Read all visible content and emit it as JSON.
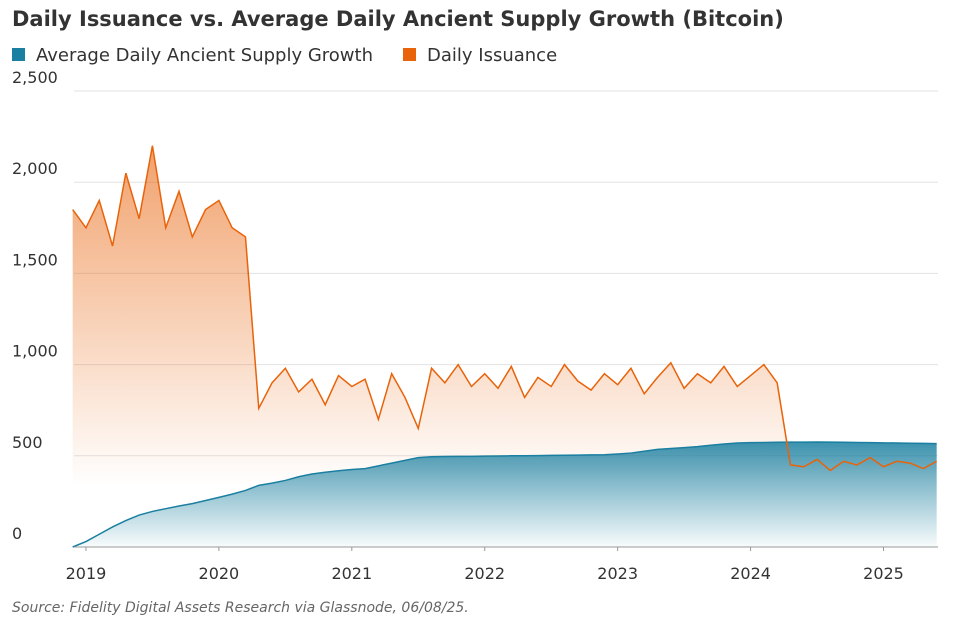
{
  "chart_data": {
    "type": "area",
    "title": "Daily Issuance vs. Average Daily Ancient Supply Growth (Bitcoin)",
    "source": "Source: Fidelity Digital Assets Research via Glassnode, 06/08/25.",
    "x": [
      2018.9,
      2019.0,
      2019.1,
      2019.2,
      2019.3,
      2019.4,
      2019.5,
      2019.6,
      2019.7,
      2019.8,
      2019.9,
      2020.0,
      2020.1,
      2020.2,
      2020.3,
      2020.4,
      2020.5,
      2020.6,
      2020.7,
      2020.8,
      2020.9,
      2021.0,
      2021.1,
      2021.2,
      2021.3,
      2021.4,
      2021.5,
      2021.6,
      2021.7,
      2021.8,
      2021.9,
      2022.0,
      2022.1,
      2022.2,
      2022.3,
      2022.4,
      2022.5,
      2022.6,
      2022.7,
      2022.8,
      2022.9,
      2023.0,
      2023.1,
      2023.2,
      2023.3,
      2023.4,
      2023.5,
      2023.6,
      2023.7,
      2023.8,
      2023.9,
      2024.0,
      2024.1,
      2024.2,
      2024.3,
      2024.4,
      2024.5,
      2024.6,
      2024.7,
      2024.8,
      2024.9,
      2025.0,
      2025.1,
      2025.2,
      2025.3,
      2025.4
    ],
    "series": [
      {
        "name": "Average Daily Ancient Supply Growth",
        "color": "#1a7fa0",
        "values": [
          0,
          30,
          70,
          110,
          145,
          175,
          195,
          210,
          225,
          238,
          255,
          272,
          290,
          310,
          338,
          350,
          365,
          385,
          400,
          410,
          418,
          425,
          430,
          445,
          460,
          475,
          490,
          495,
          496,
          497,
          497,
          498,
          499,
          500,
          500,
          501,
          502,
          503,
          504,
          505,
          506,
          510,
          515,
          525,
          535,
          540,
          545,
          550,
          558,
          565,
          570,
          572,
          573,
          574,
          575,
          575,
          576,
          575,
          574,
          573,
          572,
          571,
          570,
          569,
          568,
          567
        ]
      },
      {
        "name": "Daily Issuance",
        "color": "#e8630a",
        "values": [
          1850,
          1750,
          1900,
          1650,
          2050,
          1800,
          2200,
          1750,
          1950,
          1700,
          1850,
          1900,
          1750,
          1700,
          760,
          900,
          980,
          850,
          920,
          780,
          940,
          880,
          920,
          700,
          950,
          820,
          650,
          980,
          900,
          1000,
          880,
          950,
          870,
          990,
          820,
          930,
          880,
          1000,
          910,
          860,
          950,
          890,
          980,
          840,
          930,
          1010,
          870,
          950,
          900,
          990,
          880,
          940,
          1000,
          900,
          450,
          440,
          480,
          420,
          470,
          450,
          490,
          440,
          470,
          460,
          430,
          470
        ]
      }
    ],
    "xlim": [
      2018.91,
      2025.41
    ],
    "xticks": [
      2019,
      2020,
      2021,
      2022,
      2023,
      2024,
      2025
    ],
    "ylim": [
      0,
      2500
    ],
    "yticks": [
      0,
      500,
      {
        "value": 1000,
        "label": "1,000"
      },
      {
        "value": 1500,
        "label": "1,500"
      },
      {
        "value": 2000,
        "label": "2,000"
      },
      {
        "value": 2500,
        "label": "2,500"
      }
    ],
    "grid": true
  }
}
